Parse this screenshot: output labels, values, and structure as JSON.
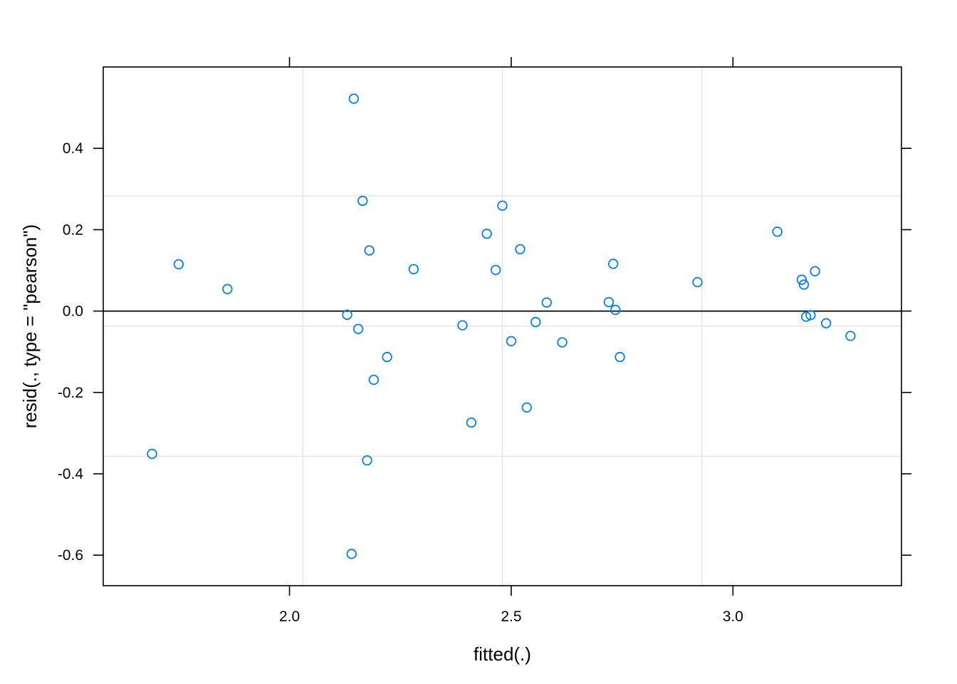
{
  "chart_data": {
    "type": "scatter",
    "title": "",
    "xlabel": "fitted(.)",
    "ylabel": "resid(., type = \"pearson\")",
    "xlim": [
      1.58,
      3.38
    ],
    "ylim": [
      -0.675,
      0.6
    ],
    "x_ticks": [
      {
        "value": 2.0,
        "label": "2.0"
      },
      {
        "value": 2.5,
        "label": "2.5"
      },
      {
        "value": 3.0,
        "label": "3.0"
      }
    ],
    "y_ticks": [
      {
        "value": -0.6,
        "label": "-0.6"
      },
      {
        "value": -0.4,
        "label": "-0.4"
      },
      {
        "value": -0.2,
        "label": "-0.2"
      },
      {
        "value": 0.0,
        "label": "0.0"
      },
      {
        "value": 0.2,
        "label": "0.2"
      },
      {
        "value": 0.4,
        "label": "0.4"
      }
    ],
    "grid": true,
    "grid_x": [
      2.03,
      2.48,
      2.93
    ],
    "grid_y": [
      -0.357,
      -0.037,
      0.283
    ],
    "reference_line_y": 0.0,
    "colors": {
      "points": "#0080ff",
      "grid": "#e6e6e6",
      "axis": "#000000",
      "reference": "#000000"
    },
    "points": [
      {
        "x": 1.69,
        "y": -0.351
      },
      {
        "x": 1.75,
        "y": 0.115
      },
      {
        "x": 1.86,
        "y": 0.054
      },
      {
        "x": 2.13,
        "y": -0.009
      },
      {
        "x": 2.14,
        "y": -0.597
      },
      {
        "x": 2.145,
        "y": 0.522
      },
      {
        "x": 2.155,
        "y": -0.044
      },
      {
        "x": 2.165,
        "y": 0.271
      },
      {
        "x": 2.175,
        "y": -0.367
      },
      {
        "x": 2.18,
        "y": 0.149
      },
      {
        "x": 2.19,
        "y": -0.169
      },
      {
        "x": 2.22,
        "y": -0.113
      },
      {
        "x": 2.28,
        "y": 0.103
      },
      {
        "x": 2.39,
        "y": -0.035
      },
      {
        "x": 2.41,
        "y": -0.274
      },
      {
        "x": 2.445,
        "y": 0.19
      },
      {
        "x": 2.465,
        "y": 0.101
      },
      {
        "x": 2.48,
        "y": 0.259
      },
      {
        "x": 2.5,
        "y": -0.074
      },
      {
        "x": 2.52,
        "y": 0.152
      },
      {
        "x": 2.535,
        "y": -0.237
      },
      {
        "x": 2.555,
        "y": -0.027
      },
      {
        "x": 2.58,
        "y": 0.021
      },
      {
        "x": 2.615,
        "y": -0.077
      },
      {
        "x": 2.72,
        "y": 0.022
      },
      {
        "x": 2.73,
        "y": 0.116
      },
      {
        "x": 2.735,
        "y": 0.003
      },
      {
        "x": 2.745,
        "y": -0.113
      },
      {
        "x": 2.92,
        "y": 0.071
      },
      {
        "x": 3.1,
        "y": 0.195
      },
      {
        "x": 3.155,
        "y": 0.077
      },
      {
        "x": 3.16,
        "y": 0.065
      },
      {
        "x": 3.165,
        "y": -0.014
      },
      {
        "x": 3.175,
        "y": -0.01
      },
      {
        "x": 3.185,
        "y": 0.098
      },
      {
        "x": 3.21,
        "y": -0.03
      },
      {
        "x": 3.265,
        "y": -0.061
      }
    ]
  }
}
